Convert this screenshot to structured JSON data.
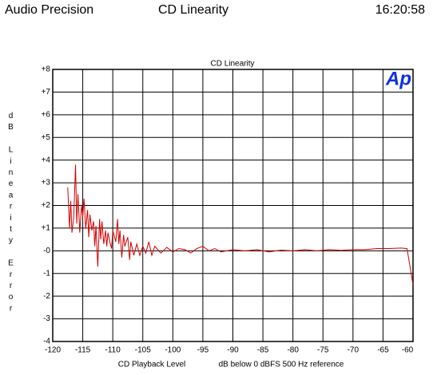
{
  "header": {
    "left": "Audio Precision",
    "center": "CD Linearity",
    "right": "16:20:58"
  },
  "chart_data": {
    "type": "line",
    "title": "CD Linearity",
    "logo": "Ap",
    "ylabel": "dB Linearity Error",
    "xlabel": "CD Playback Level",
    "xlabel_note": "dB below 0 dBFS 500 Hz reference",
    "xlim": [
      -120,
      -60
    ],
    "xticks": [
      -120,
      -115,
      -110,
      -105,
      -100,
      -95,
      -90,
      -85,
      -80,
      -75,
      -70,
      -65,
      -60
    ],
    "ylim": [
      -4,
      8
    ],
    "yticks": [
      {
        "value": 8,
        "label": "+8"
      },
      {
        "value": 7,
        "label": "+7"
      },
      {
        "value": 6,
        "label": "+6"
      },
      {
        "value": 5,
        "label": "+5"
      },
      {
        "value": 4,
        "label": "+4"
      },
      {
        "value": 3,
        "label": "+3"
      },
      {
        "value": 2,
        "label": "+2"
      },
      {
        "value": 1,
        "label": "+1"
      },
      {
        "value": 0,
        "label": "-0"
      },
      -1,
      -2,
      -3,
      -4
    ],
    "grid": true,
    "x": [
      -117.5,
      -117.2,
      -117,
      -116.8,
      -116.5,
      -116.2,
      -116,
      -115.8,
      -115.5,
      -115.2,
      -115,
      -114.8,
      -114.5,
      -114.2,
      -114,
      -113.8,
      -113.5,
      -113.2,
      -113,
      -112.8,
      -112.5,
      -112.2,
      -112,
      -111.8,
      -111.5,
      -111.2,
      -111,
      -110.8,
      -110.5,
      -110.2,
      -110,
      -109.5,
      -109.2,
      -109,
      -108.8,
      -108.5,
      -108.2,
      -108,
      -107.5,
      -107.2,
      -107,
      -106.5,
      -106,
      -105.5,
      -105,
      -104.5,
      -104,
      -103.5,
      -103,
      -102,
      -101,
      -100,
      -99,
      -98,
      -97,
      -96,
      -95,
      -94,
      -93,
      -92,
      -90,
      -88,
      -86,
      -84,
      -82,
      -80,
      -78,
      -76,
      -74,
      -72,
      -70,
      -68,
      -66,
      -64,
      -62,
      -61,
      -60
    ],
    "series": [
      {
        "color": "#d40000",
        "values": [
          2.8,
          1.0,
          2.2,
          0.8,
          1.5,
          3.8,
          1.2,
          2.5,
          0.8,
          2.0,
          1.5,
          2.3,
          1.0,
          1.8,
          0.6,
          1.6,
          0.9,
          1.3,
          0.2,
          1.1,
          -0.7,
          1.4,
          0.5,
          1.3,
          0.3,
          0.9,
          0.2,
          0.8,
          0.4,
          0.1,
          0.9,
          0.4,
          1.4,
          0.3,
          0.9,
          -0.3,
          0.7,
          0.2,
          0.6,
          -0.4,
          0.4,
          -0.2,
          0.3,
          -0.2,
          0.2,
          -0.1,
          0.4,
          -0.2,
          0.2,
          -0.1,
          0.15,
          -0.05,
          0.1,
          0.05,
          -0.1,
          0.1,
          0.2,
          0.0,
          0.1,
          -0.05,
          0.05,
          0.0,
          0.05,
          -0.05,
          0.03,
          0.0,
          0.05,
          0.0,
          0.05,
          0.02,
          0.05,
          0.05,
          0.1,
          0.1,
          0.12,
          0.1,
          -1.5
        ]
      }
    ]
  }
}
